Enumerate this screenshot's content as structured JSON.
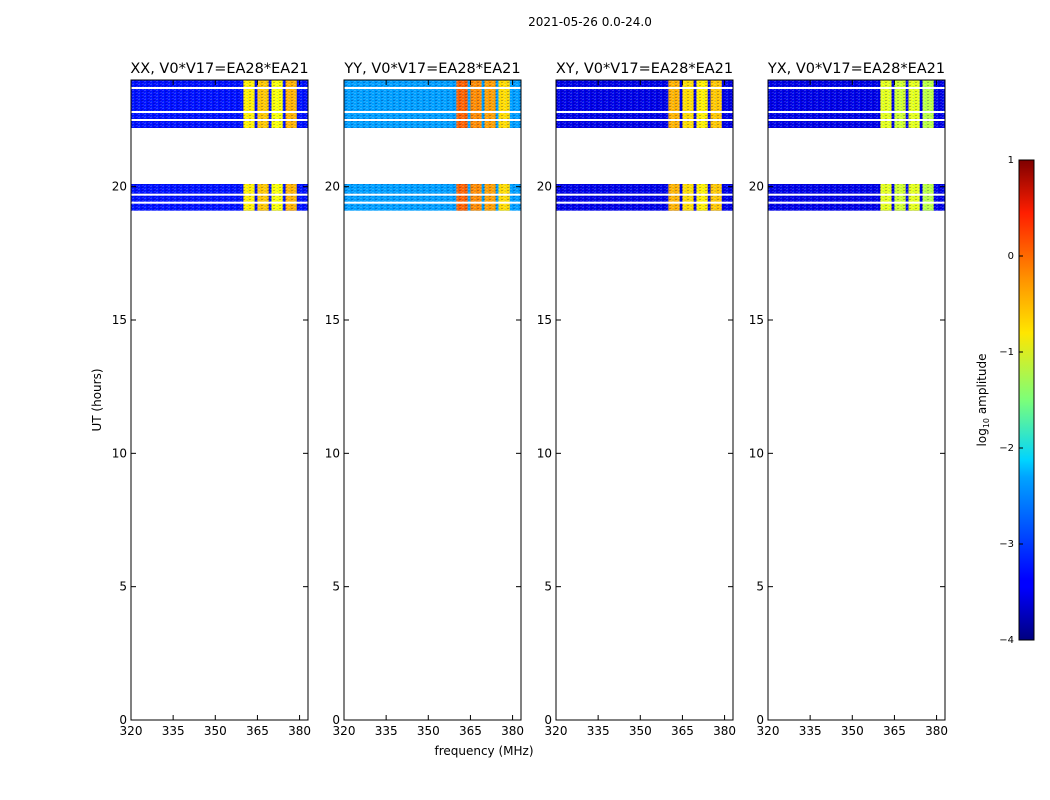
{
  "figure": {
    "suptitle": "2021-05-26 0.0-24.0",
    "xlabel": "frequency (MHz)",
    "ylabel": "UT (hours)"
  },
  "chart_data": {
    "type": "heatmap",
    "title": "2021-05-26 0.0-24.0",
    "xlabel": "frequency (MHz)",
    "ylabel": "UT (hours)",
    "xlim": [
      320,
      383
    ],
    "ylim": [
      0,
      24
    ],
    "x_ticks": [
      320,
      335,
      350,
      365,
      380
    ],
    "y_ticks": [
      0,
      5,
      10,
      15,
      20
    ],
    "colorbar": {
      "label": "log10 amplitude",
      "label_main": "log",
      "label_sub": "10",
      "label_rest": " amplitude",
      "range": [
        -4,
        1
      ],
      "ticks": [
        1,
        0,
        -1,
        -2,
        -3,
        -4
      ],
      "tick_labels": [
        "1",
        "0",
        "−1",
        "−2",
        "−3",
        "−4"
      ],
      "colormap": "jet"
    },
    "time_blocks_hours": [
      [
        19.1,
        20.1
      ],
      [
        22.2,
        24.0
      ]
    ],
    "flagged_lines_hours": [
      19.4,
      19.7,
      23.7,
      22.5,
      22.8
    ],
    "panels": [
      {
        "title": "XX, V0*V17=EA28*EA21",
        "background_level": -3.3,
        "bands": [
          {
            "f0": 360,
            "f1": 364,
            "level": -0.8
          },
          {
            "f0": 365,
            "f1": 369,
            "level": -0.6
          },
          {
            "f0": 370,
            "f1": 374,
            "level": -0.9
          },
          {
            "f0": 375,
            "f1": 379,
            "level": -0.5
          }
        ]
      },
      {
        "title": "YY, V0*V17=EA28*EA21",
        "background_level": -2.6,
        "bands": [
          {
            "f0": 360,
            "f1": 364,
            "level": -0.1
          },
          {
            "f0": 365,
            "f1": 369,
            "level": -0.3
          },
          {
            "f0": 370,
            "f1": 374,
            "level": -0.4
          },
          {
            "f0": 375,
            "f1": 379,
            "level": -0.7
          }
        ]
      },
      {
        "title": "XY, V0*V17=EA28*EA21",
        "background_level": -3.5,
        "bands": [
          {
            "f0": 360,
            "f1": 364,
            "level": -0.5
          },
          {
            "f0": 365,
            "f1": 369,
            "level": -0.7
          },
          {
            "f0": 370,
            "f1": 374,
            "level": -0.8
          },
          {
            "f0": 375,
            "f1": 379,
            "level": -0.6
          }
        ]
      },
      {
        "title": "YX, V0*V17=EA28*EA21",
        "background_level": -3.5,
        "bands": [
          {
            "f0": 360,
            "f1": 364,
            "level": -1.0
          },
          {
            "f0": 365,
            "f1": 369,
            "level": -1.1
          },
          {
            "f0": 370,
            "f1": 374,
            "level": -1.0
          },
          {
            "f0": 375,
            "f1": 379,
            "level": -1.2
          }
        ]
      }
    ]
  }
}
